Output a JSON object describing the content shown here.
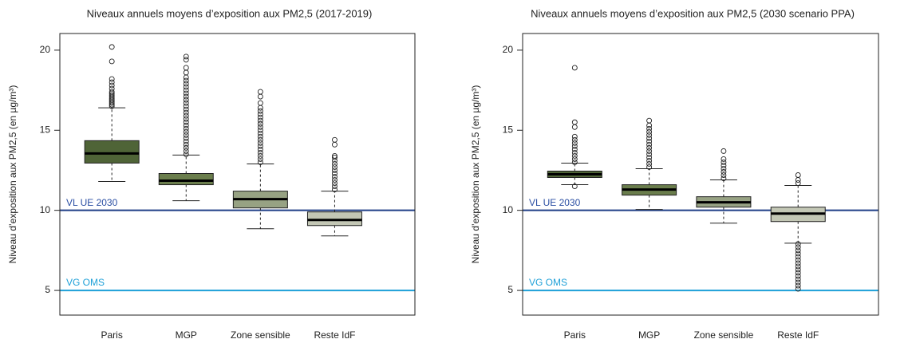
{
  "chart_data": [
    {
      "type": "boxplot",
      "title": "Niveaux annuels moyens d’exposition aux PM2,5 (2017-2019)",
      "ylabel": "Niveau d’exposition aux PM2,5 (en µg/m³)",
      "categories": [
        "Paris",
        "MGP",
        "Zone sensible",
        "Reste IdF"
      ],
      "colors": [
        "#4f6437",
        "#6a7d4c",
        "#97a283",
        "#c3c7b5"
      ],
      "boxes": [
        {
          "low": 11.8,
          "q1": 12.95,
          "median": 13.55,
          "q3": 14.35,
          "high": 16.4,
          "outliers": [
            16.5,
            16.6,
            16.7,
            16.8,
            16.9,
            17.0,
            17.1,
            17.2,
            17.3,
            17.4,
            17.6,
            17.8,
            18.0,
            18.2,
            19.3,
            20.2
          ]
        },
        {
          "low": 10.6,
          "q1": 11.6,
          "median": 11.85,
          "q3": 12.3,
          "high": 13.45,
          "outliers": [
            13.5,
            13.7,
            13.9,
            14.1,
            14.3,
            14.5,
            14.7,
            14.9,
            15.1,
            15.3,
            15.5,
            15.7,
            15.9,
            16.1,
            16.3,
            16.5,
            16.7,
            16.9,
            17.1,
            17.3,
            17.5,
            17.7,
            17.9,
            18.1,
            18.3,
            18.6,
            18.9,
            19.4,
            19.6
          ]
        },
        {
          "low": 8.85,
          "q1": 10.15,
          "median": 10.7,
          "q3": 11.2,
          "high": 12.9,
          "outliers": [
            13.0,
            13.2,
            13.4,
            13.6,
            13.8,
            14.0,
            14.2,
            14.4,
            14.6,
            14.8,
            15.0,
            15.2,
            15.4,
            15.6,
            15.8,
            16.0,
            16.2,
            16.4,
            16.7,
            17.1,
            17.4
          ]
        },
        {
          "low": 8.4,
          "q1": 9.05,
          "median": 9.4,
          "q3": 9.9,
          "high": 11.2,
          "outliers": [
            11.3,
            11.5,
            11.7,
            11.9,
            12.1,
            12.3,
            12.5,
            12.7,
            12.9,
            13.1,
            13.3,
            13.4,
            14.1,
            14.4
          ]
        }
      ],
      "ylim": [
        3.46,
        21.04
      ],
      "yticks": [
        5,
        10,
        15,
        20
      ],
      "reference_lines": [
        {
          "value": 10,
          "label": "VL UE 2030",
          "color": "#1f3f86",
          "label_color": "#2b4fa3"
        },
        {
          "value": 5,
          "label": "VG OMS",
          "color": "#1ea0d8",
          "label_color": "#1ea0d8"
        }
      ]
    },
    {
      "type": "boxplot",
      "title": "Niveaux annuels moyens d’exposition aux PM2,5 (2030 scenario PPA)",
      "ylabel": "Niveau d’exposition aux PM2,5 (en µg/m³)",
      "categories": [
        "Paris",
        "MGP",
        "Zone sensible",
        "Reste IdF"
      ],
      "colors": [
        "#4f6437",
        "#6a7d4c",
        "#97a283",
        "#c3c7b5"
      ],
      "boxes": [
        {
          "low": 11.6,
          "q1": 12.05,
          "median": 12.25,
          "q3": 12.45,
          "high": 12.95,
          "outliers": [
            11.5,
            13.0,
            13.2,
            13.4,
            13.6,
            13.8,
            14.0,
            14.2,
            14.4,
            14.6,
            15.2,
            15.5,
            18.9
          ]
        },
        {
          "low": 10.05,
          "q1": 10.95,
          "median": 11.3,
          "q3": 11.6,
          "high": 12.6,
          "outliers": [
            12.7,
            12.9,
            13.1,
            13.3,
            13.5,
            13.7,
            13.9,
            14.1,
            14.3,
            14.5,
            14.7,
            14.9,
            15.1,
            15.3,
            15.6
          ]
        },
        {
          "low": 9.2,
          "q1": 10.2,
          "median": 10.5,
          "q3": 10.85,
          "high": 11.9,
          "outliers": [
            12.0,
            12.2,
            12.4,
            12.6,
            12.8,
            13.0,
            13.2,
            13.7
          ]
        },
        {
          "low": 7.95,
          "q1": 9.3,
          "median": 9.8,
          "q3": 10.2,
          "high": 11.55,
          "outliers": [
            11.7,
            11.9,
            12.2,
            5.1,
            5.3,
            5.5,
            5.7,
            5.9,
            6.1,
            6.3,
            6.5,
            6.7,
            6.9,
            7.1,
            7.3,
            7.5,
            7.7,
            7.9
          ]
        }
      ],
      "ylim": [
        3.46,
        21.04
      ],
      "yticks": [
        5,
        10,
        15,
        20
      ],
      "reference_lines": [
        {
          "value": 10,
          "label": "VL UE 2030",
          "color": "#1f3f86",
          "label_color": "#2b4fa3"
        },
        {
          "value": 5,
          "label": "VG OMS",
          "color": "#1ea0d8",
          "label_color": "#1ea0d8"
        }
      ]
    }
  ]
}
